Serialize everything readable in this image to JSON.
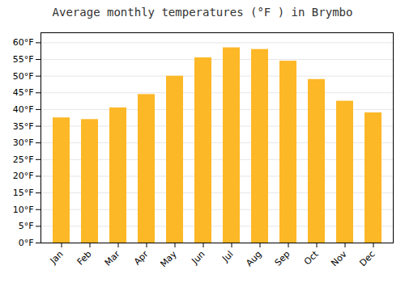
{
  "chart_data": {
    "type": "bar",
    "title": "Average monthly temperatures (°F ) in Brymbo",
    "categories": [
      "Jan",
      "Feb",
      "Mar",
      "Apr",
      "May",
      "Jun",
      "Jul",
      "Aug",
      "Sep",
      "Oct",
      "Nov",
      "Dec"
    ],
    "values": [
      37.5,
      37.0,
      40.5,
      44.5,
      50.0,
      55.5,
      58.5,
      58.0,
      54.5,
      49.0,
      42.5,
      39.0
    ],
    "color": "#FDB827",
    "ylim": [
      0,
      63
    ],
    "yticks": [
      {
        "value": 0,
        "label": "0°F"
      },
      {
        "value": 5,
        "label": "5°F"
      },
      {
        "value": 10,
        "label": "10°F"
      },
      {
        "value": 15,
        "label": "15°F"
      },
      {
        "value": 20,
        "label": "20°F"
      },
      {
        "value": 25,
        "label": "25°F"
      },
      {
        "value": 30,
        "label": "30°F"
      },
      {
        "value": 35,
        "label": "35°F"
      },
      {
        "value": 40,
        "label": "40°F"
      },
      {
        "value": 45,
        "label": "45°F"
      },
      {
        "value": 50,
        "label": "50°F"
      },
      {
        "value": 55,
        "label": "55°F"
      },
      {
        "value": 60,
        "label": "60°F"
      }
    ],
    "grid": true
  }
}
